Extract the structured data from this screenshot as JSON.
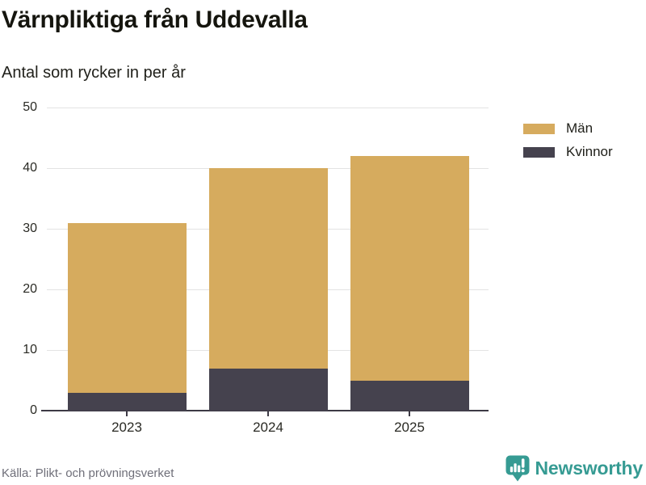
{
  "header": {
    "title": "Värnpliktiga från Uddevalla",
    "subtitle": "Antal som rycker in per år"
  },
  "chart_data": {
    "type": "bar",
    "stacked": true,
    "title": "Värnpliktiga från Uddevalla",
    "subtitle": "Antal som rycker in per år",
    "categories": [
      "2023",
      "2024",
      "2025"
    ],
    "series": [
      {
        "name": "Män",
        "values": [
          28,
          33,
          37
        ],
        "color": "#d6ab5e"
      },
      {
        "name": "Kvinnor",
        "values": [
          3,
          7,
          5
        ],
        "color": "#45424e"
      }
    ],
    "stack_bottom_series": "Kvinnor",
    "totals": [
      31,
      40,
      42
    ],
    "xlabel": "",
    "ylabel": "",
    "ylim": [
      0,
      50
    ],
    "yticks": [
      0,
      10,
      20,
      30,
      40,
      50
    ],
    "grid": true,
    "legend_position": "top-right"
  },
  "footer": {
    "source": "Källa: Plikt- och prövningsverket",
    "brand": "Newsworthy"
  },
  "colors": {
    "men": "#d6ab5e",
    "women": "#45424e",
    "brand_teal": "#369b93",
    "grid": "#e3e3e3",
    "axis": "#3d3a45",
    "text_dark": "#15150e",
    "text_muted": "#6f6f79"
  }
}
